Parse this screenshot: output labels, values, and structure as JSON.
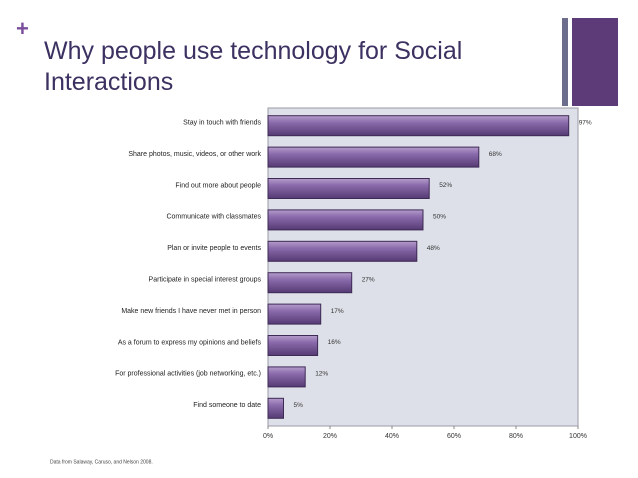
{
  "slide": {
    "marker": "+",
    "title": "Why people use technology for Social Interactions"
  },
  "chart_data": {
    "type": "hbar",
    "categories": [
      "Stay in touch with friends",
      "Share photos, music, videos, or other work",
      "Find out more about people",
      "Communicate with classmates",
      "Plan or invite people to events",
      "Participate in special interest groups",
      "Make new friends I have never met in person",
      "As a forum to express my opinions and beliefs",
      "For professional activities (job networking, etc.)",
      "Find someone to date"
    ],
    "values": [
      97,
      68,
      52,
      50,
      48,
      27,
      17,
      16,
      12,
      5
    ],
    "value_labels": [
      "97%",
      "68%",
      "52%",
      "50%",
      "48%",
      "27%",
      "17%",
      "16%",
      "12%",
      "5%"
    ],
    "color": "#74569a",
    "xlim": [
      0,
      100
    ],
    "xticks": [
      {
        "value": 0,
        "label": "0%"
      },
      {
        "value": 20,
        "label": "20%"
      },
      {
        "value": 40,
        "label": "40%"
      },
      {
        "value": 60,
        "label": "60%"
      },
      {
        "value": 80,
        "label": "80%"
      },
      {
        "value": 100,
        "label": "100%"
      }
    ],
    "source": "Data from Salaway, Caruso, and Nelson 2008."
  }
}
